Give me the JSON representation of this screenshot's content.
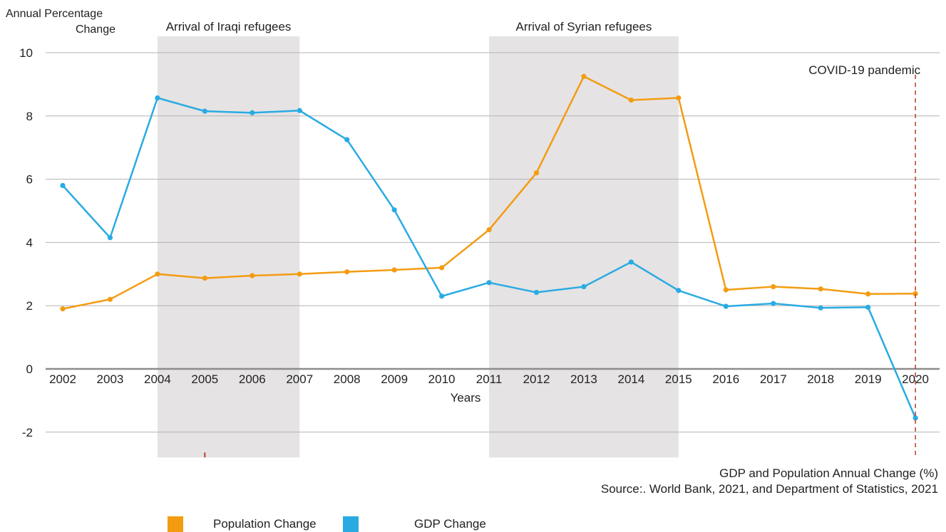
{
  "chart_data": {
    "type": "line",
    "ylabel": "Annual Percentage Change",
    "xlabel": "Years",
    "ylim": [
      -2.8,
      10
    ],
    "yticks": [
      10,
      8,
      6,
      4,
      2,
      0,
      -2
    ],
    "ytick_labels": [
      "10",
      "8",
      "6",
      "4",
      "2",
      "0",
      "-2"
    ],
    "categories": [
      "2002",
      "2003",
      "2004",
      "2005",
      "2006",
      "2007",
      "2008",
      "2009",
      "2010",
      "2011",
      "2012",
      "2013",
      "2014",
      "2015",
      "2016",
      "2017",
      "2018",
      "2019",
      "2020"
    ],
    "series": [
      {
        "name": "Population Change",
        "color": "#f39c12",
        "values": [
          1.9,
          2.2,
          3.0,
          2.87,
          2.95,
          3.0,
          3.07,
          3.13,
          3.2,
          4.4,
          6.2,
          9.25,
          8.5,
          8.57,
          2.5,
          2.6,
          2.53,
          2.37,
          2.38
        ]
      },
      {
        "name": "GDP Change",
        "color": "#29abe2",
        "values": [
          5.8,
          4.15,
          8.57,
          8.15,
          8.1,
          8.17,
          7.25,
          5.03,
          2.3,
          2.73,
          2.42,
          2.6,
          3.38,
          2.48,
          1.98,
          2.07,
          1.93,
          1.95,
          -1.55
        ]
      }
    ],
    "shaded_periods": [
      {
        "label": "Arrival of Iraqi refugees",
        "from": "2004",
        "to": "2007"
      },
      {
        "label": "Arrival of Syrian refugees",
        "from": "2011",
        "to": "2015"
      }
    ],
    "event_marker": {
      "label": "COVID-19 pandemic",
      "at": "2020"
    },
    "grid": true,
    "legend_position": "bottom",
    "caption_title": "GDP and Population Annual Change (%)",
    "caption_source": "Source:. World Bank, 2021, and Department of Statistics, 2021"
  }
}
